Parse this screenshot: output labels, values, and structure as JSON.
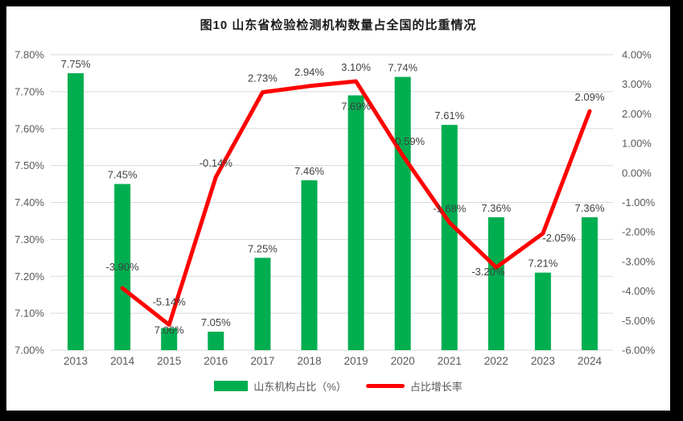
{
  "chart_data": {
    "type": "bar",
    "combo": "bar+line",
    "title": "图10  山东省检验检测机构数量占全国的比重情况",
    "categories": [
      "2013",
      "2014",
      "2015",
      "2016",
      "2017",
      "2018",
      "2019",
      "2020",
      "2021",
      "2022",
      "2023",
      "2024"
    ],
    "series": [
      {
        "name": "山东机构占比（%）",
        "chart": "bar",
        "axis": "left",
        "color": "#00AE50",
        "values": [
          7.75,
          7.45,
          7.06,
          7.05,
          7.25,
          7.46,
          7.69,
          7.74,
          7.61,
          7.36,
          7.21,
          7.36
        ],
        "labels": [
          "7.75%",
          "7.45%",
          "7.06%",
          "7.05%",
          "7.25%",
          "7.46%",
          "7.69%",
          "7.74%",
          "7.61%",
          "7.36%",
          "7.21%",
          "7.36%"
        ]
      },
      {
        "name": "占比增长率",
        "chart": "line",
        "axis": "right",
        "color": "#FE0000",
        "values": [
          null,
          -3.9,
          -5.14,
          -0.14,
          2.73,
          2.94,
          3.1,
          0.59,
          -1.68,
          -3.2,
          -2.05,
          2.09
        ],
        "labels": [
          null,
          "-3.90%",
          "-5.14%",
          "-0.14%",
          "2.73%",
          "2.94%",
          "3.10%",
          "0.59%",
          "-1.68%",
          "-3.20%",
          "-2.05%",
          "2.09%"
        ]
      }
    ],
    "left_axis": {
      "min": 7.0,
      "max": 7.8,
      "step": 0.1,
      "ticks": [
        "7.80%",
        "7.70%",
        "7.60%",
        "7.50%",
        "7.40%",
        "7.30%",
        "7.20%",
        "7.10%",
        "7.00%"
      ]
    },
    "right_axis": {
      "min": -6.0,
      "max": 4.0,
      "step": 1.0,
      "ticks": [
        "4.00%",
        "3.00%",
        "2.00%",
        "1.00%",
        "0.00%",
        "-1.00%",
        "-2.00%",
        "-3.00%",
        "-4.00%",
        "-5.00%",
        "-6.00%"
      ]
    },
    "grid": true,
    "legend_position": "bottom",
    "colors": {
      "grid": "#D9D9D9",
      "axis_text": "#595959",
      "data_label": "#404040"
    },
    "layout_hints": {
      "bar_label_dy": {
        "2": 7,
        "6": 18
      },
      "line_label_dy": {
        "1": -22,
        "2": -24,
        "9": 10,
        "10": 10
      },
      "line_label_dx": {
        "7": 9,
        "9": -10,
        "10": 20
      }
    }
  }
}
